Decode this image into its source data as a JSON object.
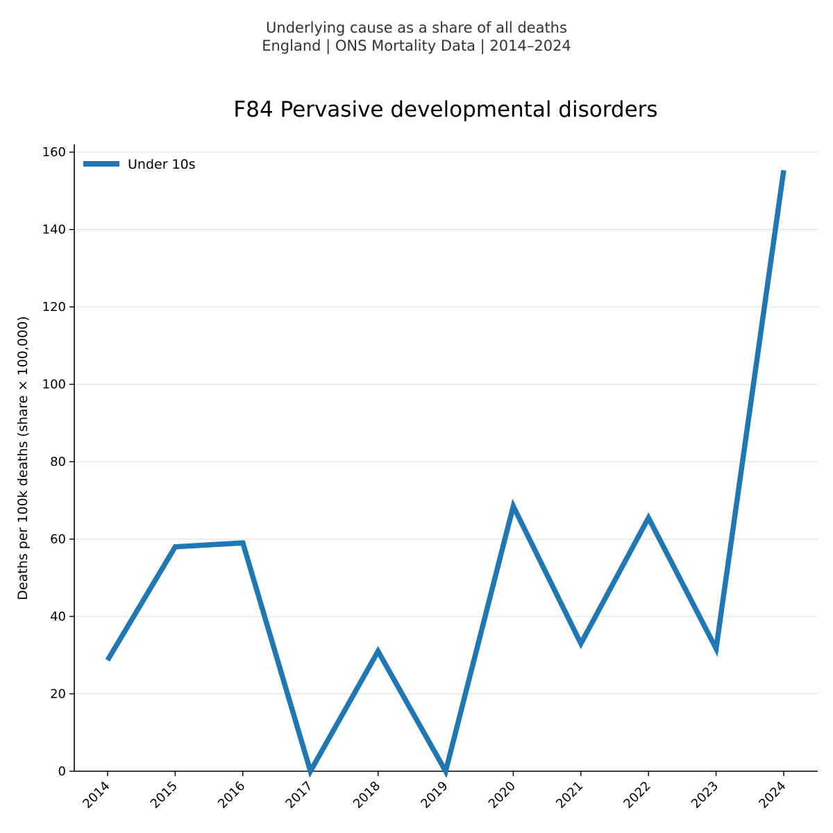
{
  "chart_data": {
    "type": "line",
    "suptitle_line1": "Underlying cause as a share of all deaths",
    "suptitle_line2": "England | ONS Mortality Data | 2014–2024",
    "title": "F84 Pervasive developmental disorders",
    "xlabel": "",
    "ylabel": "Deaths per 100k deaths (share × 100,000)",
    "x": [
      "2014",
      "2015",
      "2016",
      "2017",
      "2018",
      "2019",
      "2020",
      "2021",
      "2022",
      "2023",
      "2024"
    ],
    "series": [
      {
        "name": "Under 10s",
        "color": "#1f77b4",
        "values": [
          28.7,
          58.0,
          59.0,
          0,
          31.0,
          0,
          68.5,
          33.0,
          65.5,
          31.7,
          155.3
        ]
      }
    ],
    "ylim": [
      0,
      162
    ],
    "yticks": [
      0,
      20,
      40,
      60,
      80,
      100,
      120,
      140,
      160
    ],
    "grid": "horizontal",
    "legend_position": "top-left"
  }
}
